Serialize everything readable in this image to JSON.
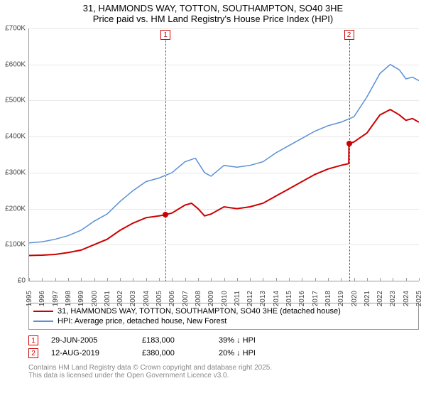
{
  "title_line1": "31, HAMMONDS WAY, TOTTON, SOUTHAMPTON, SO40 3HE",
  "title_line2": "Price paid vs. HM Land Registry's House Price Index (HPI)",
  "chart": {
    "type": "line",
    "x": {
      "min": 1995,
      "max": 2025,
      "tick_years": [
        1995,
        1996,
        1997,
        1998,
        1999,
        2000,
        2001,
        2002,
        2003,
        2004,
        2005,
        2006,
        2007,
        2008,
        2009,
        2010,
        2011,
        2012,
        2013,
        2014,
        2015,
        2016,
        2017,
        2018,
        2019,
        2020,
        2021,
        2022,
        2023,
        2024,
        2025
      ]
    },
    "y": {
      "min": 0,
      "max": 700000,
      "ticks": [
        0,
        100000,
        200000,
        300000,
        400000,
        500000,
        600000,
        700000
      ],
      "labels": [
        "£0",
        "£100K",
        "£200K",
        "£300K",
        "£400K",
        "£500K",
        "£600K",
        "£700K"
      ]
    },
    "grid_color": "#e8e8e8",
    "background_color": "#ffffff",
    "series": [
      {
        "name": "property",
        "color": "#cc0000",
        "width": 2,
        "label": "31, HAMMONDS WAY, TOTTON, SOUTHAMPTON, SO40 3HE (detached house)",
        "points": [
          [
            1995.0,
            70000
          ],
          [
            1996.0,
            71000
          ],
          [
            1997.0,
            73000
          ],
          [
            1998.0,
            78000
          ],
          [
            1999.0,
            85000
          ],
          [
            2000.0,
            100000
          ],
          [
            2001.0,
            115000
          ],
          [
            2002.0,
            140000
          ],
          [
            2003.0,
            160000
          ],
          [
            2004.0,
            175000
          ],
          [
            2005.0,
            180000
          ],
          [
            2005.5,
            183000
          ],
          [
            2006.0,
            188000
          ],
          [
            2007.0,
            210000
          ],
          [
            2007.5,
            215000
          ],
          [
            2008.0,
            200000
          ],
          [
            2008.5,
            180000
          ],
          [
            2009.0,
            185000
          ],
          [
            2010.0,
            205000
          ],
          [
            2011.0,
            200000
          ],
          [
            2012.0,
            205000
          ],
          [
            2013.0,
            215000
          ],
          [
            2014.0,
            235000
          ],
          [
            2015.0,
            255000
          ],
          [
            2016.0,
            275000
          ],
          [
            2017.0,
            295000
          ],
          [
            2018.0,
            310000
          ],
          [
            2019.0,
            320000
          ],
          [
            2019.6,
            325000
          ],
          [
            2019.62,
            380000
          ],
          [
            2020.0,
            385000
          ],
          [
            2021.0,
            410000
          ],
          [
            2022.0,
            460000
          ],
          [
            2022.8,
            475000
          ],
          [
            2023.5,
            460000
          ],
          [
            2024.0,
            445000
          ],
          [
            2024.5,
            450000
          ],
          [
            2025.0,
            440000
          ]
        ]
      },
      {
        "name": "hpi",
        "color": "#5b8fd6",
        "width": 1.5,
        "label": "HPI: Average price, detached house, New Forest",
        "points": [
          [
            1995.0,
            105000
          ],
          [
            1996.0,
            108000
          ],
          [
            1997.0,
            115000
          ],
          [
            1998.0,
            125000
          ],
          [
            1999.0,
            140000
          ],
          [
            2000.0,
            165000
          ],
          [
            2001.0,
            185000
          ],
          [
            2002.0,
            220000
          ],
          [
            2003.0,
            250000
          ],
          [
            2004.0,
            275000
          ],
          [
            2005.0,
            285000
          ],
          [
            2006.0,
            300000
          ],
          [
            2007.0,
            330000
          ],
          [
            2007.8,
            340000
          ],
          [
            2008.5,
            300000
          ],
          [
            2009.0,
            290000
          ],
          [
            2010.0,
            320000
          ],
          [
            2011.0,
            315000
          ],
          [
            2012.0,
            320000
          ],
          [
            2013.0,
            330000
          ],
          [
            2014.0,
            355000
          ],
          [
            2015.0,
            375000
          ],
          [
            2016.0,
            395000
          ],
          [
            2017.0,
            415000
          ],
          [
            2018.0,
            430000
          ],
          [
            2019.0,
            440000
          ],
          [
            2020.0,
            455000
          ],
          [
            2021.0,
            510000
          ],
          [
            2022.0,
            575000
          ],
          [
            2022.8,
            600000
          ],
          [
            2023.5,
            585000
          ],
          [
            2024.0,
            560000
          ],
          [
            2024.5,
            565000
          ],
          [
            2025.0,
            555000
          ]
        ]
      }
    ],
    "sales": [
      {
        "idx": "1",
        "year_frac": 2005.5,
        "price": 183000,
        "date": "29-JUN-2005",
        "price_label": "£183,000",
        "vs_hpi": "39% ↓ HPI"
      },
      {
        "idx": "2",
        "year_frac": 2019.62,
        "price": 380000,
        "date": "12-AUG-2019",
        "price_label": "£380,000",
        "vs_hpi": "20% ↓ HPI"
      }
    ],
    "sale_point_color": "#cc0000",
    "marker_border": "#cc0000"
  },
  "legend_header": "",
  "attribution_line1": "Contains HM Land Registry data © Crown copyright and database right 2025.",
  "attribution_line2": "This data is licensed under the Open Government Licence v3.0.",
  "fontsize_title": 13,
  "fontsize_axis": 10,
  "fontsize_legend": 11
}
